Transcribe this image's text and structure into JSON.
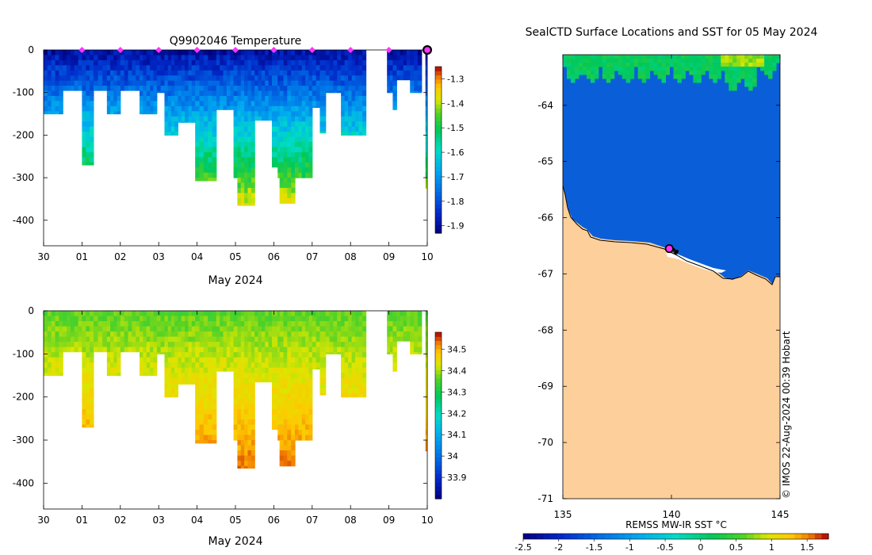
{
  "chart_data": [
    {
      "id": "temperature",
      "type": "heatmap",
      "title": "Q9902046  Temperature",
      "xlabel": "May 2024",
      "ylabel": "",
      "x_ticks": [
        "30",
        "01",
        "02",
        "03",
        "04",
        "05",
        "06",
        "07",
        "08",
        "09",
        "10"
      ],
      "x_range_days": [
        0,
        10
      ],
      "y_ticks": [
        0,
        -100,
        -200,
        -300,
        -400
      ],
      "ylim": [
        -460,
        0
      ],
      "colorbar": {
        "min": -1.93,
        "max": -1.25,
        "ticks": [
          -1.3,
          -1.4,
          -1.5,
          -1.6,
          -1.7,
          -1.8,
          -1.9
        ],
        "tick_labels": [
          "-1.3",
          "-1.4",
          "-1.5",
          "-1.6",
          "-1.7",
          "-1.8",
          "-1.9"
        ]
      },
      "profiles": [
        {
          "t0": 0.0,
          "t1": 0.5,
          "depth": 150
        },
        {
          "t0": 0.5,
          "t1": 1.0,
          "depth": 95
        },
        {
          "t0": 1.0,
          "t1": 1.3,
          "depth": 270
        },
        {
          "t0": 1.3,
          "t1": 1.65,
          "depth": 95
        },
        {
          "t0": 1.65,
          "t1": 2.0,
          "depth": 150
        },
        {
          "t0": 2.0,
          "t1": 2.5,
          "depth": 95
        },
        {
          "t0": 2.5,
          "t1": 2.95,
          "depth": 150
        },
        {
          "t0": 2.95,
          "t1": 3.15,
          "depth": 100
        },
        {
          "t0": 3.15,
          "t1": 3.5,
          "depth": 200
        },
        {
          "t0": 3.5,
          "t1": 3.95,
          "depth": 170
        },
        {
          "t0": 3.95,
          "t1": 4.5,
          "depth": 307
        },
        {
          "t0": 4.5,
          "t1": 4.95,
          "depth": 140
        },
        {
          "t0": 4.95,
          "t1": 5.05,
          "depth": 300
        },
        {
          "t0": 5.05,
          "t1": 5.5,
          "depth": 365
        },
        {
          "t0": 5.5,
          "t1": 5.95,
          "depth": 165
        },
        {
          "t0": 5.95,
          "t1": 6.1,
          "depth": 275
        },
        {
          "t0": 6.1,
          "t1": 6.15,
          "depth": 300
        },
        {
          "t0": 6.15,
          "t1": 6.55,
          "depth": 360
        },
        {
          "t0": 6.55,
          "t1": 7.0,
          "depth": 300
        },
        {
          "t0": 7.0,
          "t1": 7.2,
          "depth": 135
        },
        {
          "t0": 7.2,
          "t1": 7.35,
          "depth": 195
        },
        {
          "t0": 7.35,
          "t1": 7.75,
          "depth": 100
        },
        {
          "t0": 7.75,
          "t1": 8.4,
          "depth": 200
        },
        {
          "t0": 8.95,
          "t1": 9.1,
          "depth": 100
        },
        {
          "t0": 9.1,
          "t1": 9.2,
          "depth": 140
        },
        {
          "t0": 9.2,
          "t1": 9.55,
          "depth": 70
        },
        {
          "t0": 9.55,
          "t1": 9.85,
          "depth": 100
        },
        {
          "t0": 9.95,
          "t1": 10.0,
          "depth": 325
        }
      ],
      "daily_markers_days": [
        1,
        2,
        3,
        4,
        5,
        6,
        7,
        8,
        9
      ],
      "latest_marker_day": 10,
      "colors": {
        "marker": "#ff33ff",
        "latest_marker": "#ff33ff"
      }
    },
    {
      "id": "salinity",
      "type": "heatmap",
      "title": "",
      "xlabel": "May 2024",
      "ylabel": "",
      "x_ticks": [
        "30",
        "01",
        "02",
        "03",
        "04",
        "05",
        "06",
        "07",
        "08",
        "09",
        "10"
      ],
      "x_range_days": [
        0,
        10
      ],
      "y_ticks": [
        0,
        -100,
        -200,
        -300,
        -400
      ],
      "ylim": [
        -460,
        0
      ],
      "colorbar": {
        "min": 33.8,
        "max": 34.58,
        "ticks": [
          34.5,
          34.4,
          34.3,
          34.2,
          34.1,
          34.0,
          33.9
        ],
        "tick_labels": [
          "34.5",
          "34.4",
          "34.3",
          "34.2",
          "34.1",
          "34",
          "33.9"
        ]
      }
    },
    {
      "id": "sst-map",
      "type": "heatmap",
      "title": "SealCTD Surface Locations and SST for 05 May 2024",
      "xlabel": "",
      "ylabel": "",
      "xlim": [
        135,
        145
      ],
      "ylim": [
        -71,
        -63.1
      ],
      "x_ticks": [
        "135",
        "140",
        "145"
      ],
      "x_tick_values": [
        135,
        140,
        145
      ],
      "y_ticks": [
        "-64",
        "-65",
        "-66",
        "-67",
        "-68",
        "-69",
        "-70",
        "-71"
      ],
      "y_tick_values": [
        -64,
        -65,
        -66,
        -67,
        -68,
        -69,
        -70,
        -71
      ],
      "colorbar": {
        "label": "REMSS MW-IR SST °C",
        "min": -2.5,
        "max": 1.8,
        "ticks": [
          -2.5,
          -2,
          -1.5,
          -1,
          -0.5,
          0,
          0.5,
          1,
          1.5
        ],
        "tick_labels": [
          "-2.5",
          "-2",
          "-1.5",
          "-1",
          "-0.5",
          "0",
          "0.5",
          "1",
          "1.5"
        ]
      },
      "seal_track": [
        {
          "lon": 139.85,
          "lat": -66.55
        },
        {
          "lon": 139.95,
          "lat": -66.58
        },
        {
          "lon": 140.1,
          "lat": -66.57
        },
        {
          "lon": 140.2,
          "lat": -66.62
        },
        {
          "lon": 140.25,
          "lat": -66.6
        }
      ],
      "latest_position": {
        "lon": 139.9,
        "lat": -66.55
      },
      "credit": "© IMOS 22-Aug-2024 00:39 Hobart",
      "colors": {
        "land": "#fdcf9b",
        "ocean": "#0a5fd8",
        "track_marker": "#ff33ff"
      }
    }
  ]
}
